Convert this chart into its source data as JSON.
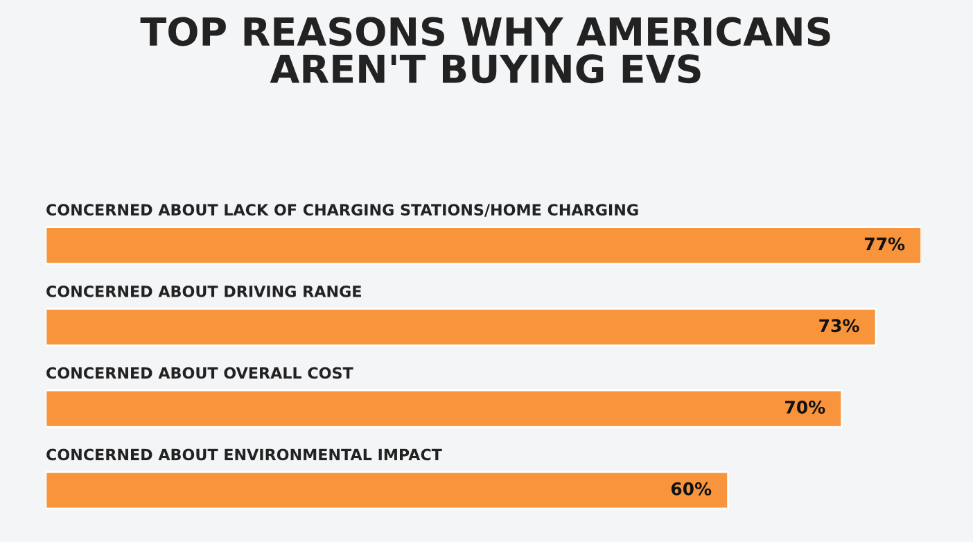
{
  "chart_data": {
    "type": "bar",
    "orientation": "horizontal",
    "title": "TOP REASONS WHY AMERICANS\nAREN'T BUYING EVS",
    "categories": [
      "CONCERNED ABOUT LACK OF CHARGING STATIONS/HOME CHARGING",
      "CONCERNED ABOUT DRIVING RANGE",
      "CONCERNED ABOUT OVERALL COST",
      "CONCERNED ABOUT ENVIRONMENTAL IMPACT"
    ],
    "values": [
      77,
      73,
      70,
      60
    ],
    "value_labels": [
      "77%",
      "73%",
      "70%",
      "60%"
    ],
    "color": "#f7943c"
  }
}
